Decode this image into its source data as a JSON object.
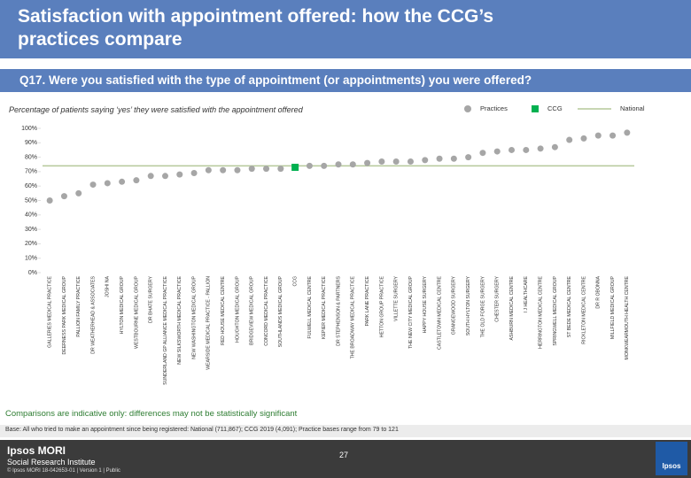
{
  "chart_data": {
    "type": "dot",
    "title": "Satisfaction with appointment offered: how the CCG’s practices compare",
    "question": "Q17. Were you satisfied with the type of appointment (or appointments) you were offered?",
    "subtitle": "Percentage of patients saying ‘yes’ they were satisfied with the appointment offered",
    "categories": [
      "GALLERIES MEDICAL PRACTICE",
      "DEERNESS PARK MEDICAL GROUP",
      "PALLION FAMILY PRACTICE",
      "DR WEATHERHEAD & ASSOCIATES",
      "JOSHI NA",
      "HYLTON MEDICAL GROUP",
      "WESTBOURNE MEDICAL GROUP",
      "DR BHATE SURGERY",
      "SUNDERLAND GP ALLIANCE MEDICAL PRACTICE",
      "NEW SILKSWORTH MEDICAL PRACTICE",
      "NEW WASHINGTON MEDICAL GROUP",
      "WEARSIDE MEDICAL PRACTICE - PALLION",
      "RED HOUSE MEDICAL CENTRE",
      "HOUGHTON MEDICAL GROUP",
      "BRIDGEVIEW MEDICAL GROUP",
      "CONCORD MEDICAL PRACTICE",
      "SOUTHLANDS MEDICAL GROUP",
      "CCG",
      "FULWELL MEDICAL CENTRE",
      "KEPIER MEDICAL PRACTICE",
      "DR STEPHENSON & PARTNERS",
      "THE BROADWAY MEDICAL PRACTICE",
      "PARK LANE PRACTICE",
      "HETTON GROUP PRACTICE",
      "VILLETTE SURGERY",
      "THE NEW CITY MEDICAL GROUP",
      "HAPPY HOUSE SURGERY",
      "CASTLETOWN MEDICAL CENTRE",
      "GRANGEWOOD SURGERY",
      "SOUTH HYLTON SURGERY",
      "THE OLD FORGE SURGERY",
      "CHESTER SURGERY",
      "ASHBURN MEDICAL CENTRE",
      "I J HEALTHCARE",
      "HERRINGTON MEDICAL CENTRE",
      "SPRINGWELL MEDICAL GROUP",
      "ST BEDE MEDICAL CENTRE",
      "RICKLETON MEDICAL CENTRE",
      "DR R OBONNA",
      "MILLFIELD MEDICAL GROUP",
      "MONKWEARMOUTH HEALTH CENTRE"
    ],
    "series": [
      {
        "name": "Practices",
        "color": "#a6a6a6",
        "marker": "circle",
        "values": [
          50,
          53,
          55,
          61,
          62,
          63,
          64,
          67,
          67,
          68,
          69,
          71,
          71,
          71,
          72,
          72,
          72,
          null,
          74,
          74,
          75,
          75,
          76,
          77,
          77,
          77,
          78,
          79,
          79,
          80,
          83,
          84,
          85,
          85,
          86,
          87,
          92,
          93,
          95,
          95,
          97
        ]
      },
      {
        "name": "CCG",
        "color": "#00b050",
        "marker": "square",
        "values": [
          null,
          null,
          null,
          null,
          null,
          null,
          null,
          null,
          null,
          null,
          null,
          null,
          null,
          null,
          null,
          null,
          null,
          73,
          null,
          null,
          null,
          null,
          null,
          null,
          null,
          null,
          null,
          null,
          null,
          null,
          null,
          null,
          null,
          null,
          null,
          null,
          null,
          null,
          null,
          null,
          null
        ]
      }
    ],
    "national": {
      "name": "National",
      "value": 74,
      "color": "#b5c99a"
    },
    "ylim": [
      0,
      100
    ],
    "yticks": [
      {
        "value": 0,
        "label": "0%"
      },
      {
        "value": 10,
        "label": "10%"
      },
      {
        "value": 20,
        "label": "20%"
      },
      {
        "value": 30,
        "label": "30%"
      },
      {
        "value": 40,
        "label": "40%"
      },
      {
        "value": 50,
        "label": "50%"
      },
      {
        "value": 60,
        "label": "60%"
      },
      {
        "value": 70,
        "label": "70%"
      },
      {
        "value": 80,
        "label": "80%"
      },
      {
        "value": 90,
        "label": "90%"
      },
      {
        "value": 100,
        "label": "100%"
      }
    ],
    "note": "Comparisons are indicative only: differences may not be statistically significant",
    "base": "Base: All who tried to make an appointment since being registered: National (711,867); CCG 2019 (4,091); Practice bases range from 79 to 121"
  },
  "footer": {
    "logo": "Ipsos MORI",
    "institute": "Social Research Institute",
    "copyright": "© Ipsos MORI    18-042653-01 | Version 1 | Public",
    "page": "27",
    "badge": "Ipsos"
  }
}
